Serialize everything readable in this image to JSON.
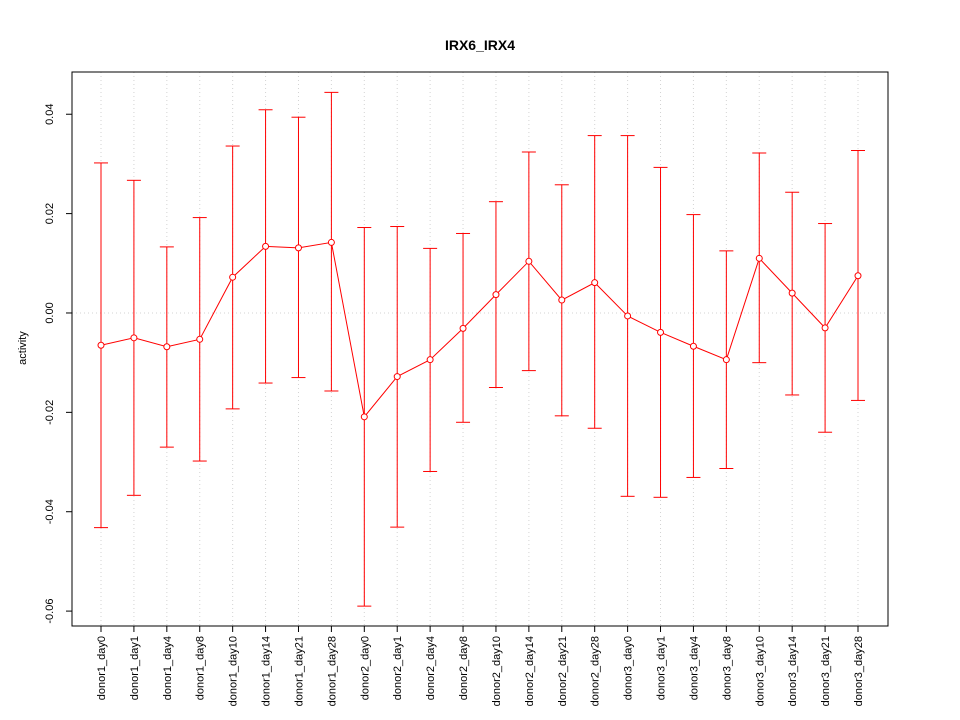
{
  "chart_data": {
    "type": "line",
    "title": "IRX6_IRX4",
    "xlabel": "",
    "ylabel": "activity",
    "ylim": [
      -0.063,
      0.0485
    ],
    "yticks": [
      -0.06,
      -0.04,
      -0.02,
      0.0,
      0.02,
      0.04
    ],
    "ytick_labels": [
      "-0.06",
      "-0.04",
      "-0.02",
      "0.00",
      "0.02",
      "0.04"
    ],
    "grid": true,
    "reference_line": 0.0,
    "color": "#ff0000",
    "categories": [
      "donor1_day0",
      "donor1_day1",
      "donor1_day4",
      "donor1_day8",
      "donor1_day10",
      "donor1_day14",
      "donor1_day21",
      "donor1_day28",
      "donor2_day0",
      "donor2_day1",
      "donor2_day4",
      "donor2_day8",
      "donor2_day10",
      "donor2_day14",
      "donor2_day21",
      "donor2_day28",
      "donor3_day0",
      "donor3_day1",
      "donor3_day4",
      "donor3_day8",
      "donor3_day10",
      "donor3_day14",
      "donor3_day21",
      "donor3_day28"
    ],
    "values": [
      -0.0065,
      -0.005,
      -0.0068,
      -0.0053,
      0.0072,
      0.0134,
      0.0131,
      0.0142,
      -0.0209,
      -0.0128,
      -0.0094,
      -0.0031,
      0.0037,
      0.0104,
      0.0026,
      0.0061,
      -0.0006,
      -0.0039,
      -0.0067,
      -0.0094,
      0.011,
      0.004,
      -0.003,
      0.0075
    ],
    "upper": [
      0.0302,
      0.0267,
      0.0133,
      0.0192,
      0.0336,
      0.0409,
      0.0394,
      0.0444,
      0.0172,
      0.0174,
      0.013,
      0.016,
      0.0224,
      0.0324,
      0.0258,
      0.0357,
      0.0357,
      0.0293,
      0.0198,
      0.0125,
      0.0322,
      0.0243,
      0.018,
      0.0327
    ],
    "lower": [
      -0.0432,
      -0.0367,
      -0.027,
      -0.0298,
      -0.0193,
      -0.0141,
      -0.013,
      -0.0157,
      -0.059,
      -0.0431,
      -0.0319,
      -0.022,
      -0.015,
      -0.0116,
      -0.0207,
      -0.0232,
      -0.0369,
      -0.0371,
      -0.0331,
      -0.0313,
      -0.01,
      -0.0165,
      -0.024,
      -0.0176
    ]
  }
}
